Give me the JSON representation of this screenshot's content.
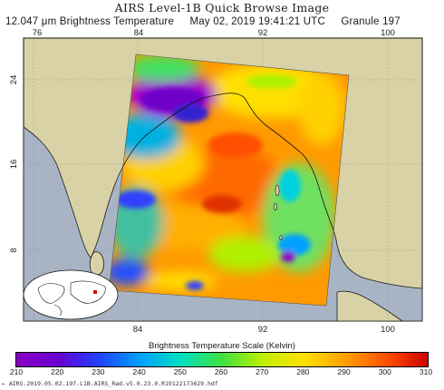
{
  "header": {
    "title": "AIRS Level-1B Quick Browse Image",
    "channel": "12.047 μm Brightness Temperature",
    "datetime": "May 02, 2019 19:41:21 UTC",
    "granule": "Granule 197"
  },
  "map": {
    "top_lon_labels": [
      "76",
      "84",
      "92",
      "100"
    ],
    "bottom_lon_labels": [
      "84",
      "92",
      "100"
    ],
    "lat_labels": [
      "24",
      "16",
      "8"
    ],
    "colors": {
      "land": "#d8d2a6",
      "ocean": "#a8b4c4",
      "coast": "#1a1a1a",
      "graticule": "#888888"
    }
  },
  "colorbar": {
    "title": "Brightness Temperature Scale (Kelvin)",
    "ticks": [
      "210",
      "220",
      "230",
      "240",
      "250",
      "260",
      "270",
      "280",
      "290",
      "300",
      "310"
    ],
    "colors": [
      "#8b00c4",
      "#6a00d0",
      "#2040ff",
      "#00a0ff",
      "#00e0c0",
      "#40e040",
      "#c0f000",
      "#ffe000",
      "#ffa000",
      "#ff5000",
      "#d00000"
    ]
  },
  "footer": {
    "filename": "AIRS.2019.05.02.197.L1B.AIRS_Rad.v5.0.23.0.R19122173629.hdf"
  }
}
